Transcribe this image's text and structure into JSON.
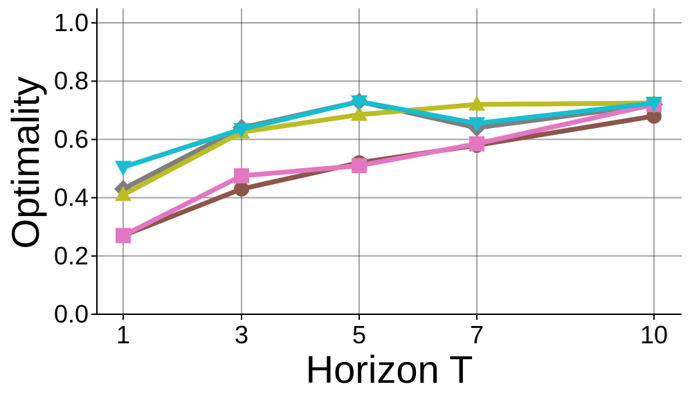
{
  "chart_data": {
    "type": "line",
    "xlabel": "Horizon T",
    "ylabel": "Optimality",
    "x": [
      1,
      3,
      5,
      7,
      10
    ],
    "x_tick_labels": [
      "1",
      "3",
      "5",
      "7",
      "10"
    ],
    "ylim": [
      0.0,
      1.05
    ],
    "y_ticks": [
      0.0,
      0.2,
      0.4,
      0.6,
      0.8,
      1.0
    ],
    "y_tick_labels": [
      "0.0",
      "0.2",
      "0.4",
      "0.6",
      "0.8",
      "1.0"
    ],
    "grid": true,
    "legend": "none",
    "series": [
      {
        "color": "#8c564b",
        "marker": "circle",
        "values": [
          0.27,
          0.43,
          0.52,
          0.58,
          0.68
        ]
      },
      {
        "color": "#7f7f7f",
        "marker": "diamond",
        "values": [
          0.43,
          0.64,
          0.73,
          0.64,
          0.72
        ]
      },
      {
        "color": "#bcbd22",
        "marker": "triangle-up",
        "values": [
          0.41,
          0.625,
          0.685,
          0.72,
          0.725
        ]
      },
      {
        "color": "#e377c2",
        "marker": "square",
        "values": [
          0.27,
          0.475,
          0.51,
          0.585,
          0.72
        ]
      },
      {
        "color": "#17becf",
        "marker": "triangle-down",
        "values": [
          0.505,
          0.635,
          0.73,
          0.655,
          0.725
        ]
      }
    ]
  }
}
